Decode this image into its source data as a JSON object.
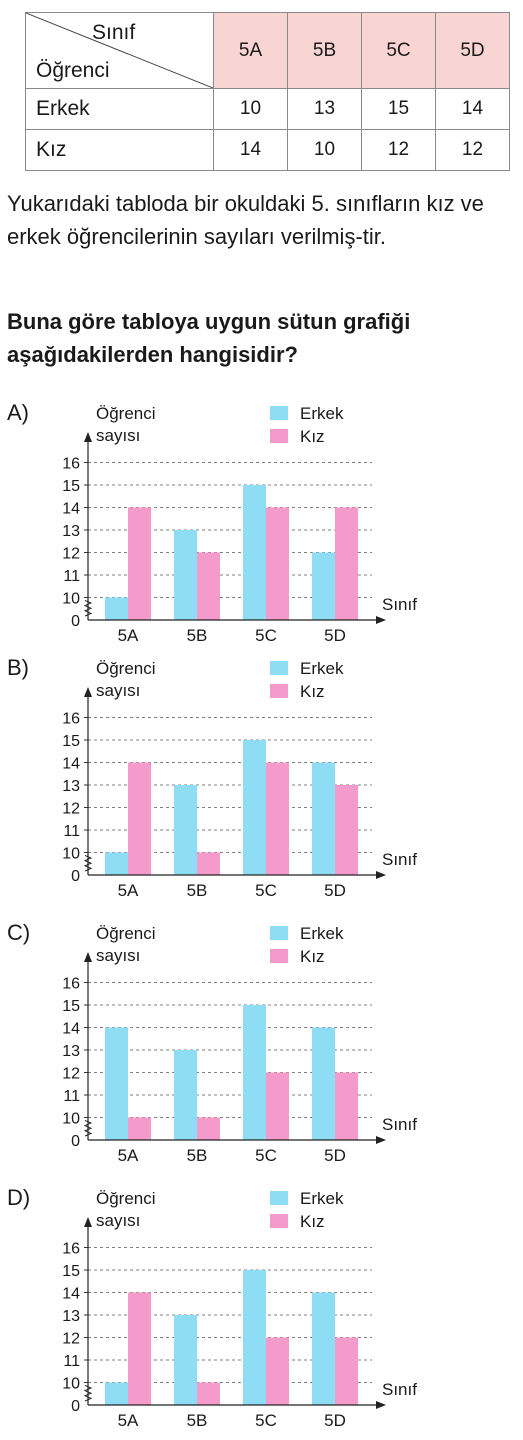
{
  "table": {
    "corner_top": "Sınıf",
    "corner_bottom": "Öğrenci",
    "classes": [
      "5A",
      "5B",
      "5C",
      "5D"
    ],
    "rows": [
      {
        "label": "Erkek",
        "values": [
          "10",
          "13",
          "15",
          "14"
        ]
      },
      {
        "label": "Kız",
        "values": [
          "14",
          "10",
          "12",
          "12"
        ]
      }
    ]
  },
  "intro_text": "Yukarıdaki tabloda bir okuldaki 5. sınıfların kız ve erkek öğrencilerinin sayıları verilmiş-tir.",
  "question_text": "Buna göre tabloya uygun sütun grafiği aşağıdakilerden hangisidir?",
  "colors": {
    "erkek": "#8fdcf5",
    "kiz": "#f59bcb",
    "header_bg": "#f8d5d3"
  },
  "chart_data": [
    {
      "option": "A)",
      "type": "bar",
      "ylabel": [
        "Öğrenci",
        "sayısı"
      ],
      "xlabel": "Sınıf",
      "yticks": [
        "16",
        "15",
        "14",
        "13",
        "12",
        "11",
        "10",
        "0"
      ],
      "categories": [
        "5A",
        "5B",
        "5C",
        "5D"
      ],
      "series": [
        {
          "name": "Erkek",
          "values": [
            10,
            13,
            15,
            12
          ]
        },
        {
          "name": "Kız",
          "values": [
            14,
            12,
            14,
            14
          ]
        }
      ]
    },
    {
      "option": "B)",
      "type": "bar",
      "ylabel": [
        "Öğrenci",
        "sayısı"
      ],
      "xlabel": "Sınıf",
      "yticks": [
        "16",
        "15",
        "14",
        "13",
        "12",
        "11",
        "10",
        "0"
      ],
      "categories": [
        "5A",
        "5B",
        "5C",
        "5D"
      ],
      "series": [
        {
          "name": "Erkek",
          "values": [
            10,
            13,
            15,
            14
          ]
        },
        {
          "name": "Kız",
          "values": [
            14,
            10,
            14,
            13
          ]
        }
      ]
    },
    {
      "option": "C)",
      "type": "bar",
      "ylabel": [
        "Öğrenci",
        "sayısı"
      ],
      "xlabel": "Sınıf",
      "yticks": [
        "16",
        "15",
        "14",
        "13",
        "12",
        "11",
        "10",
        "0"
      ],
      "categories": [
        "5A",
        "5B",
        "5C",
        "5D"
      ],
      "series": [
        {
          "name": "Erkek",
          "values": [
            14,
            13,
            15,
            14
          ]
        },
        {
          "name": "Kız",
          "values": [
            10,
            10,
            12,
            12
          ]
        }
      ]
    },
    {
      "option": "D)",
      "type": "bar",
      "ylabel": [
        "Öğrenci",
        "sayısı"
      ],
      "xlabel": "Sınıf",
      "yticks": [
        "16",
        "15",
        "14",
        "13",
        "12",
        "11",
        "10",
        "0"
      ],
      "categories": [
        "5A",
        "5B",
        "5C",
        "5D"
      ],
      "series": [
        {
          "name": "Erkek",
          "values": [
            10,
            13,
            15,
            14
          ]
        },
        {
          "name": "Kız",
          "values": [
            14,
            10,
            12,
            12
          ]
        }
      ]
    }
  ]
}
